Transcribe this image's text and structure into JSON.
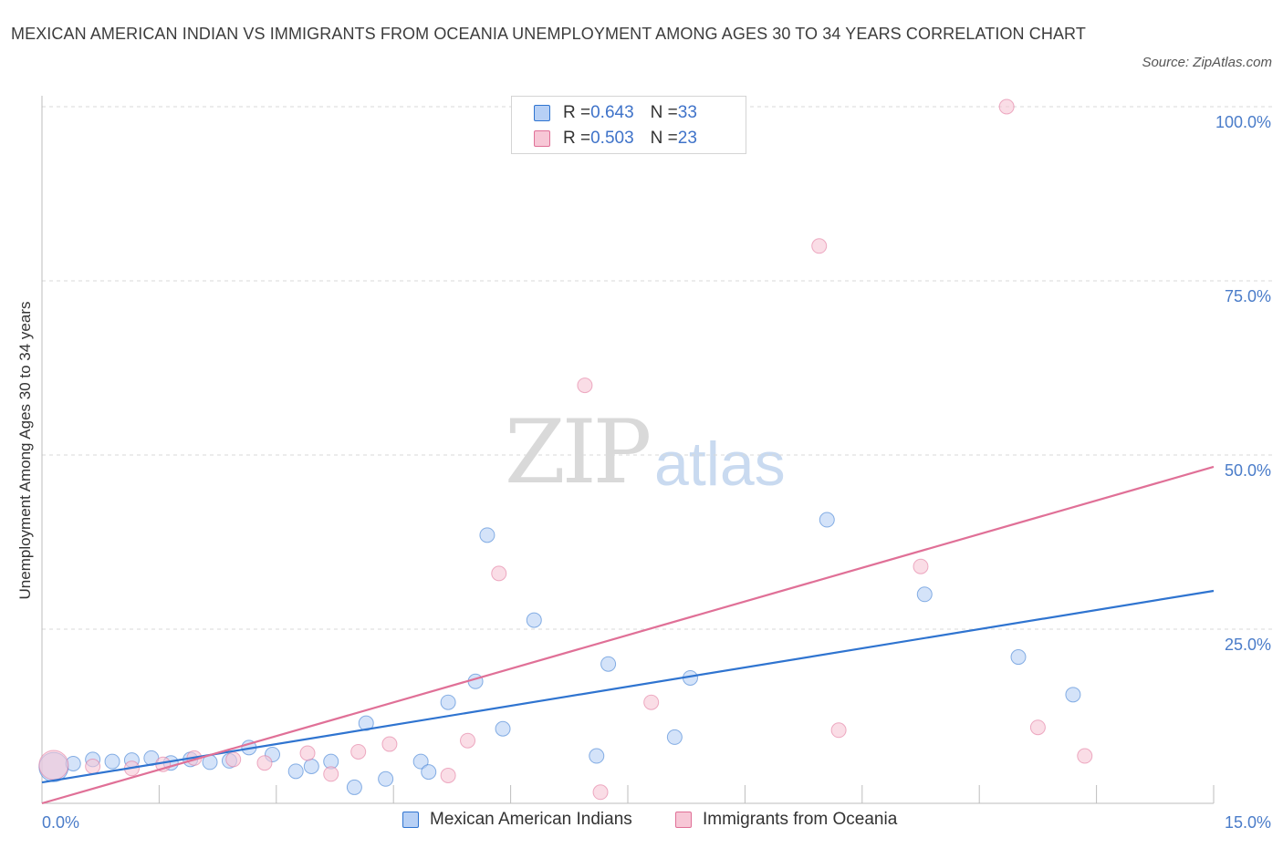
{
  "title": "MEXICAN AMERICAN INDIAN VS IMMIGRANTS FROM OCEANIA UNEMPLOYMENT AMONG AGES 30 TO 34 YEARS CORRELATION CHART",
  "source": "Source: ZipAtlas.com",
  "watermark": {
    "zip": "ZIP",
    "atlas": "atlas"
  },
  "colors": {
    "blue": "#2f74d0",
    "blue_fill": "#b7d0f5",
    "pink": "#e07097",
    "pink_fill": "#f7c7d6",
    "tick_text": "#4a7cc9",
    "grid": "#d9d9d9"
  },
  "legend": {
    "r_label": "R = ",
    "n_label": "N = ",
    "rows": [
      {
        "r": "0.643",
        "n": "33"
      },
      {
        "r": "0.503",
        "n": "23"
      }
    ]
  },
  "chart_data": {
    "type": "scatter",
    "title": "MEXICAN AMERICAN INDIAN VS IMMIGRANTS FROM OCEANIA UNEMPLOYMENT AMONG AGES 30 TO 34 YEARS CORRELATION CHART",
    "xlabel": "",
    "ylabel": "Unemployment Among Ages 30 to 34 years",
    "xlim": [
      0,
      15
    ],
    "ylim": [
      0,
      100
    ],
    "x_tick_labels": {
      "min": "0.0%",
      "max": "15.0%"
    },
    "y_ticks": [
      25,
      50,
      75,
      100
    ],
    "y_tick_labels": [
      "25.0%",
      "50.0%",
      "75.0%",
      "100.0%"
    ],
    "grid": true,
    "legend_position": "bottom-center",
    "series": [
      {
        "name": "Mexican American Indians",
        "color": "#2f74d0",
        "fill": "#b7d0f5",
        "R": 0.643,
        "N": 33,
        "trend": {
          "x": [
            0,
            15
          ],
          "y": [
            3.0,
            30.5
          ]
        },
        "points": [
          {
            "x": 0.15,
            "y": 5.2,
            "big": true
          },
          {
            "x": 0.4,
            "y": 5.7
          },
          {
            "x": 0.65,
            "y": 6.3
          },
          {
            "x": 0.9,
            "y": 6.0
          },
          {
            "x": 1.15,
            "y": 6.2
          },
          {
            "x": 1.4,
            "y": 6.5
          },
          {
            "x": 1.65,
            "y": 5.8
          },
          {
            "x": 1.9,
            "y": 6.3
          },
          {
            "x": 2.15,
            "y": 5.9
          },
          {
            "x": 2.4,
            "y": 6.1
          },
          {
            "x": 2.65,
            "y": 8.0
          },
          {
            "x": 2.95,
            "y": 7.0
          },
          {
            "x": 3.25,
            "y": 4.6
          },
          {
            "x": 3.45,
            "y": 5.3
          },
          {
            "x": 3.7,
            "y": 6.0
          },
          {
            "x": 4.0,
            "y": 2.3
          },
          {
            "x": 4.15,
            "y": 11.5
          },
          {
            "x": 4.4,
            "y": 3.5
          },
          {
            "x": 4.85,
            "y": 6.0
          },
          {
            "x": 4.95,
            "y": 4.5
          },
          {
            "x": 5.2,
            "y": 14.5
          },
          {
            "x": 5.55,
            "y": 17.5
          },
          {
            "x": 5.7,
            "y": 38.5
          },
          {
            "x": 5.9,
            "y": 10.7
          },
          {
            "x": 6.3,
            "y": 26.3
          },
          {
            "x": 7.1,
            "y": 6.8
          },
          {
            "x": 7.25,
            "y": 20.0
          },
          {
            "x": 8.1,
            "y": 9.5
          },
          {
            "x": 8.3,
            "y": 18.0
          },
          {
            "x": 10.05,
            "y": 40.7
          },
          {
            "x": 11.3,
            "y": 30.0
          },
          {
            "x": 12.5,
            "y": 21.0
          },
          {
            "x": 13.2,
            "y": 15.6
          }
        ]
      },
      {
        "name": "Immigrants from Oceania",
        "color": "#e07097",
        "fill": "#f7c7d6",
        "R": 0.503,
        "N": 23,
        "trend": {
          "x": [
            0,
            15
          ],
          "y": [
            0.0,
            48.3
          ]
        },
        "points": [
          {
            "x": 0.15,
            "y": 5.5,
            "big": true
          },
          {
            "x": 0.65,
            "y": 5.3
          },
          {
            "x": 1.15,
            "y": 5.0
          },
          {
            "x": 1.55,
            "y": 5.6
          },
          {
            "x": 1.95,
            "y": 6.5
          },
          {
            "x": 2.45,
            "y": 6.3
          },
          {
            "x": 2.85,
            "y": 5.8
          },
          {
            "x": 3.4,
            "y": 7.2
          },
          {
            "x": 3.7,
            "y": 4.2
          },
          {
            "x": 4.05,
            "y": 7.4
          },
          {
            "x": 4.45,
            "y": 8.5
          },
          {
            "x": 5.2,
            "y": 4.0
          },
          {
            "x": 5.45,
            "y": 9.0
          },
          {
            "x": 5.85,
            "y": 33.0
          },
          {
            "x": 6.95,
            "y": 60.0
          },
          {
            "x": 7.15,
            "y": 1.6
          },
          {
            "x": 7.8,
            "y": 14.5
          },
          {
            "x": 9.95,
            "y": 80.0
          },
          {
            "x": 10.2,
            "y": 10.5
          },
          {
            "x": 11.25,
            "y": 34.0
          },
          {
            "x": 12.35,
            "y": 100.0
          },
          {
            "x": 12.75,
            "y": 10.9
          },
          {
            "x": 13.35,
            "y": 6.8
          }
        ]
      }
    ]
  }
}
